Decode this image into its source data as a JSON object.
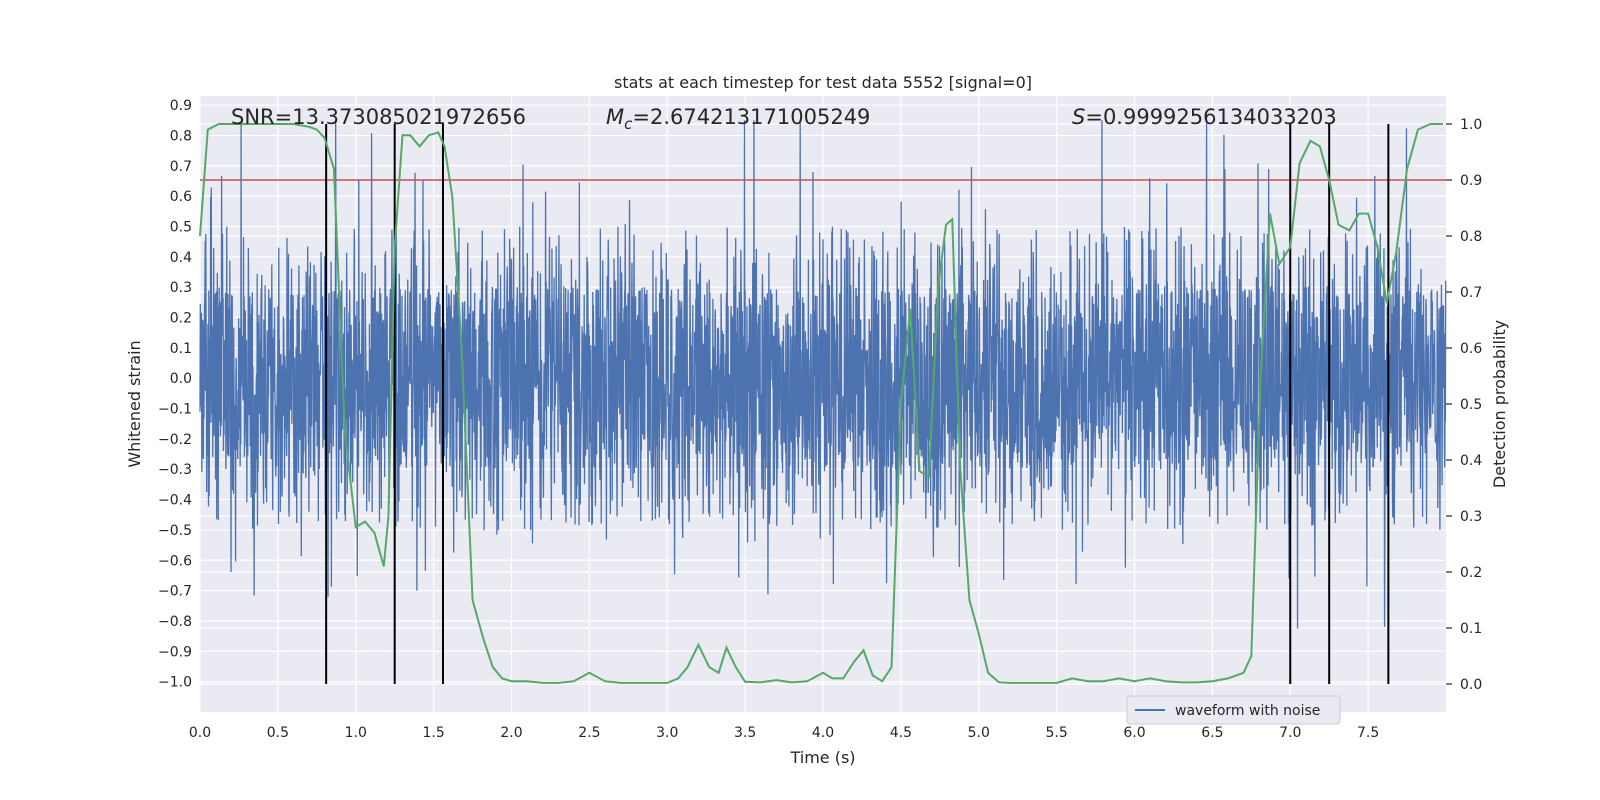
{
  "chart_data": {
    "type": "line",
    "title": "stats at each timestep for test data 5552 [signal=0]",
    "xlabel": "Time (s)",
    "ylabel": "Whitened strain",
    "y2label": "Detection probability",
    "xlim": [
      0.0,
      8.0
    ],
    "ylim": [
      -1.1,
      0.93
    ],
    "y2lim": [
      -0.05,
      1.05
    ],
    "xticks": [
      "0.0",
      "0.5",
      "1.0",
      "1.5",
      "2.0",
      "2.5",
      "3.0",
      "3.5",
      "4.0",
      "4.5",
      "5.0",
      "5.5",
      "6.0",
      "6.5",
      "7.0",
      "7.5"
    ],
    "yticks": [
      "0.9",
      "0.8",
      "0.7",
      "0.6",
      "0.5",
      "0.4",
      "0.3",
      "0.2",
      "0.1",
      "0.0",
      "−0.1",
      "−0.2",
      "−0.3",
      "−0.4",
      "−0.5",
      "−0.6",
      "−0.7",
      "−0.8",
      "−0.9",
      "−1.0"
    ],
    "y2ticks": [
      "1.0",
      "0.9",
      "0.8",
      "0.7",
      "0.6",
      "0.5",
      "0.4",
      "0.3",
      "0.2",
      "0.1",
      "0.0"
    ],
    "stats": {
      "snr": "SNR=13.373085021972656",
      "mc_symbol": "M",
      "mc_sub": "c",
      "mc_value": "=2.674213171005249",
      "s_symbol": "S",
      "s_value": "=0.9999256134033203"
    },
    "legend": {
      "entries": [
        "waveform with noise"
      ],
      "position": "lower-right"
    },
    "threshold": 0.9,
    "event_markers": [
      0.81,
      1.25,
      1.56,
      7.0,
      7.25,
      7.63
    ],
    "waveform": {
      "name": "waveform with noise",
      "color": "#4c72b0",
      "duration_s": 8.0,
      "sample_rate_hz": 512,
      "core_amplitude": 0.3,
      "approx_extremes": [
        -0.98,
        0.85
      ]
    },
    "probability": {
      "name": "detection probability",
      "color": "#55a868",
      "x": [
        0.0,
        0.05,
        0.12,
        0.2,
        0.3,
        0.4,
        0.5,
        0.6,
        0.7,
        0.75,
        0.8,
        0.86,
        0.93,
        1.0,
        1.06,
        1.12,
        1.18,
        1.21,
        1.25,
        1.3,
        1.35,
        1.41,
        1.47,
        1.53,
        1.57,
        1.62,
        1.68,
        1.75,
        1.82,
        1.88,
        1.94,
        2.0,
        2.1,
        2.2,
        2.3,
        2.4,
        2.5,
        2.6,
        2.7,
        2.8,
        2.9,
        3.0,
        3.07,
        3.13,
        3.2,
        3.27,
        3.33,
        3.38,
        3.44,
        3.5,
        3.6,
        3.7,
        3.8,
        3.9,
        4.0,
        4.06,
        4.13,
        4.2,
        4.26,
        4.32,
        4.38,
        4.44,
        4.5,
        4.56,
        4.62,
        4.68,
        4.74,
        4.79,
        4.83,
        4.88,
        4.94,
        5.0,
        5.06,
        5.13,
        5.2,
        5.3,
        5.4,
        5.5,
        5.6,
        5.7,
        5.8,
        5.9,
        6.0,
        6.1,
        6.2,
        6.3,
        6.4,
        6.5,
        6.6,
        6.7,
        6.75,
        6.81,
        6.87,
        6.93,
        7.0,
        7.06,
        7.13,
        7.19,
        7.25,
        7.31,
        7.38,
        7.44,
        7.5,
        7.56,
        7.62,
        7.68,
        7.75,
        7.82,
        7.9,
        7.98
      ],
      "y": [
        0.8,
        0.99,
        1.0,
        1.0,
        1.0,
        1.0,
        1.0,
        1.0,
        0.995,
        0.99,
        0.975,
        0.92,
        0.45,
        0.28,
        0.29,
        0.27,
        0.21,
        0.3,
        0.78,
        0.98,
        0.98,
        0.96,
        0.98,
        0.985,
        0.96,
        0.87,
        0.6,
        0.15,
        0.08,
        0.03,
        0.01,
        0.005,
        0.005,
        0.002,
        0.002,
        0.005,
        0.02,
        0.005,
        0.002,
        0.002,
        0.002,
        0.002,
        0.01,
        0.03,
        0.07,
        0.03,
        0.02,
        0.065,
        0.03,
        0.004,
        0.003,
        0.007,
        0.003,
        0.005,
        0.02,
        0.01,
        0.01,
        0.04,
        0.06,
        0.015,
        0.005,
        0.03,
        0.5,
        0.67,
        0.38,
        0.37,
        0.71,
        0.82,
        0.83,
        0.39,
        0.15,
        0.09,
        0.02,
        0.003,
        0.002,
        0.002,
        0.002,
        0.002,
        0.01,
        0.005,
        0.005,
        0.01,
        0.005,
        0.01,
        0.005,
        0.003,
        0.003,
        0.005,
        0.01,
        0.02,
        0.05,
        0.55,
        0.84,
        0.75,
        0.78,
        0.93,
        0.97,
        0.96,
        0.9,
        0.82,
        0.81,
        0.84,
        0.84,
        0.78,
        0.68,
        0.77,
        0.92,
        0.99,
        1.0,
        1.0
      ]
    }
  }
}
